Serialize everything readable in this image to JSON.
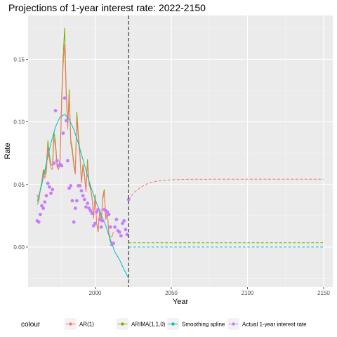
{
  "chart_data": {
    "type": "line",
    "title": "Projections of 1-year interest rate: 2022-2150",
    "xlabel": "Year",
    "ylabel": "Rate",
    "xlim": [
      1956,
      2156
    ],
    "ylim": [
      -0.032,
      0.185
    ],
    "x_ticks": [
      2000,
      2050,
      2100,
      2150
    ],
    "y_ticks": [
      0.0,
      0.05,
      0.1,
      0.15
    ],
    "y_tick_labels": [
      "0.00",
      "0.05",
      "0.10",
      "0.15"
    ],
    "grid": true,
    "cutoff_year": 2022,
    "legend": {
      "title": "colour",
      "position": "bottom",
      "entries": [
        {
          "label": "AR(1)",
          "color": "#F8766D"
        },
        {
          "label": "ARIMA(1,1,0)",
          "color": "#7CAE00"
        },
        {
          "label": "Smoothing spline",
          "color": "#00BFC4"
        },
        {
          "label": "Actual 1-year interest rate",
          "color": "#C77CFF"
        }
      ]
    },
    "series": [
      {
        "name": "Actual 1-year interest rate",
        "kind": "points",
        "color": "#C77CFF",
        "points": [
          [
            1962,
            0.021
          ],
          [
            1963,
            0.02
          ],
          [
            1964,
            0.026
          ],
          [
            1965,
            0.033
          ],
          [
            1966,
            0.031
          ],
          [
            1967,
            0.036
          ],
          [
            1968,
            0.041
          ],
          [
            1969,
            0.051
          ],
          [
            1970,
            0.048
          ],
          [
            1971,
            0.043
          ],
          [
            1972,
            0.046
          ],
          [
            1973,
            0.067
          ],
          [
            1974,
            0.109
          ],
          [
            1975,
            0.069
          ],
          [
            1976,
            0.065
          ],
          [
            1977,
            0.066
          ],
          [
            1978,
            0.065
          ],
          [
            1979,
            0.091
          ],
          [
            1980,
            0.119
          ],
          [
            1981,
            0.101
          ],
          [
            1982,
            0.069
          ],
          [
            1983,
            0.047
          ],
          [
            1984,
            0.049
          ],
          [
            1985,
            0.037
          ],
          [
            1986,
            0.02
          ],
          [
            1987,
            0.031
          ],
          [
            1988,
            0.037
          ],
          [
            1989,
            0.049
          ],
          [
            1990,
            0.049
          ],
          [
            1991,
            0.045
          ],
          [
            1992,
            0.041
          ],
          [
            1993,
            0.038
          ],
          [
            1994,
            0.032
          ],
          [
            1995,
            0.035
          ],
          [
            1996,
            0.031
          ],
          [
            1997,
            0.029
          ],
          [
            1998,
            0.027
          ],
          [
            1999,
            0.017
          ],
          [
            2000,
            0.019
          ],
          [
            2001,
            0.028
          ],
          [
            2002,
            0.03
          ],
          [
            2003,
            0.022
          ],
          [
            2004,
            0.016
          ],
          [
            2005,
            0.021
          ],
          [
            2006,
            0.03
          ],
          [
            2007,
            0.029
          ],
          [
            2008,
            0.028
          ],
          [
            2009,
            0.026
          ],
          [
            2010,
            0.016
          ],
          [
            2011,
            0.002
          ],
          [
            2012,
            0.003
          ],
          [
            2013,
            0.016
          ],
          [
            2014,
            0.022
          ],
          [
            2015,
            0.013
          ],
          [
            2016,
            0.012
          ],
          [
            2017,
            0.009
          ],
          [
            2018,
            0.019
          ],
          [
            2019,
            0.021
          ],
          [
            2020,
            0.014
          ],
          [
            2021,
            0.01
          ],
          [
            2022,
            0.038
          ]
        ]
      },
      {
        "name": "ARIMA(1,1,0)",
        "kind": "line",
        "color": "#7CAE00",
        "points": [
          [
            1962,
            0.034
          ],
          [
            1963,
            0.036
          ],
          [
            1964,
            0.046
          ],
          [
            1965,
            0.052
          ],
          [
            1966,
            0.062
          ],
          [
            1967,
            0.058
          ],
          [
            1968,
            0.064
          ],
          [
            1969,
            0.085
          ],
          [
            1970,
            0.074
          ],
          [
            1971,
            0.066
          ],
          [
            1972,
            0.065
          ],
          [
            1973,
            0.092
          ],
          [
            1974,
            0.084
          ],
          [
            1975,
            0.066
          ],
          [
            1976,
            0.064
          ],
          [
            1977,
            0.07
          ],
          [
            1978,
            0.118
          ],
          [
            1979,
            0.152
          ],
          [
            1980,
            0.175
          ],
          [
            1981,
            0.127
          ],
          [
            1982,
            0.097
          ],
          [
            1983,
            0.126
          ],
          [
            1984,
            0.086
          ],
          [
            1985,
            0.079
          ],
          [
            1986,
            0.067
          ],
          [
            1987,
            0.06
          ],
          [
            1988,
            0.108
          ],
          [
            1989,
            0.09
          ],
          [
            1990,
            0.076
          ],
          [
            1991,
            0.052
          ],
          [
            1992,
            0.066
          ],
          [
            1993,
            0.058
          ],
          [
            1994,
            0.045
          ],
          [
            1995,
            0.07
          ],
          [
            1996,
            0.052
          ],
          [
            1997,
            0.047
          ],
          [
            1998,
            0.04
          ],
          [
            1999,
            0.023
          ],
          [
            2000,
            0.042
          ],
          [
            2001,
            0.019
          ],
          [
            2002,
            0.012
          ],
          [
            2003,
            0.03
          ],
          [
            2004,
            0.02
          ],
          [
            2005,
            0.04
          ],
          [
            2006,
            0.046
          ],
          [
            2007,
            0.022
          ],
          [
            2008,
            0.029
          ],
          [
            2009,
            0.01
          ],
          [
            2010,
            0.004
          ],
          [
            2011,
            0.003
          ],
          [
            2012,
            0.003
          ]
        ]
      },
      {
        "name": "AR(1)",
        "kind": "line",
        "color": "#F8766D",
        "points": [
          [
            1962,
            0.042
          ],
          [
            1963,
            0.037
          ],
          [
            1964,
            0.045
          ],
          [
            1965,
            0.05
          ],
          [
            1966,
            0.06
          ],
          [
            1967,
            0.055
          ],
          [
            1968,
            0.06
          ],
          [
            1969,
            0.08
          ],
          [
            1970,
            0.07
          ],
          [
            1971,
            0.063
          ],
          [
            1972,
            0.062
          ],
          [
            1973,
            0.087
          ],
          [
            1974,
            0.08
          ],
          [
            1975,
            0.064
          ],
          [
            1976,
            0.062
          ],
          [
            1977,
            0.068
          ],
          [
            1978,
            0.112
          ],
          [
            1979,
            0.145
          ],
          [
            1980,
            0.162
          ],
          [
            1981,
            0.122
          ],
          [
            1982,
            0.094
          ],
          [
            1983,
            0.12
          ],
          [
            1984,
            0.083
          ],
          [
            1985,
            0.076
          ],
          [
            1986,
            0.065
          ],
          [
            1987,
            0.058
          ],
          [
            1988,
            0.103
          ],
          [
            1989,
            0.086
          ],
          [
            1990,
            0.073
          ],
          [
            1991,
            0.051
          ],
          [
            1992,
            0.064
          ],
          [
            1993,
            0.056
          ],
          [
            1994,
            0.044
          ],
          [
            1995,
            0.067
          ],
          [
            1996,
            0.05
          ],
          [
            1997,
            0.046
          ],
          [
            1998,
            0.039
          ],
          [
            1999,
            0.023
          ],
          [
            2000,
            0.04
          ],
          [
            2001,
            0.019
          ],
          [
            2002,
            0.013
          ],
          [
            2003,
            0.029
          ],
          [
            2004,
            0.02
          ],
          [
            2005,
            0.038
          ],
          [
            2006,
            0.044
          ],
          [
            2007,
            0.022
          ],
          [
            2008,
            0.028
          ],
          [
            2009,
            0.011
          ],
          [
            2010,
            0.008
          ],
          [
            2011,
            0.008
          ],
          [
            2012,
            0.012
          ]
        ]
      },
      {
        "name": "Smoothing spline",
        "kind": "line",
        "color": "#00BFC4",
        "points": [
          [
            1962,
            0.036
          ],
          [
            1965,
            0.05
          ],
          [
            1968,
            0.067
          ],
          [
            1971,
            0.083
          ],
          [
            1974,
            0.096
          ],
          [
            1977,
            0.104
          ],
          [
            1980,
            0.106
          ],
          [
            1983,
            0.102
          ],
          [
            1986,
            0.094
          ],
          [
            1989,
            0.083
          ],
          [
            1992,
            0.07
          ],
          [
            1995,
            0.057
          ],
          [
            1998,
            0.045
          ],
          [
            2001,
            0.035
          ],
          [
            2004,
            0.026
          ],
          [
            2007,
            0.017
          ],
          [
            2010,
            0.006
          ],
          [
            2013,
            -0.004
          ],
          [
            2016,
            -0.01
          ],
          [
            2019,
            -0.018
          ],
          [
            2022,
            -0.025
          ]
        ]
      },
      {
        "name": "AR(1)",
        "kind": "projection",
        "color": "#F8766D",
        "points": [
          [
            2022,
            0.038
          ],
          [
            2026,
            0.044
          ],
          [
            2030,
            0.048
          ],
          [
            2035,
            0.051
          ],
          [
            2040,
            0.0525
          ],
          [
            2045,
            0.0533
          ],
          [
            2050,
            0.0538
          ],
          [
            2060,
            0.0541
          ],
          [
            2080,
            0.0542
          ],
          [
            2100,
            0.0542
          ],
          [
            2150,
            0.0542
          ]
        ]
      },
      {
        "name": "ARIMA(1,1,0)",
        "kind": "projection",
        "color": "#7CAE00",
        "points": [
          [
            2022,
            0.0035
          ],
          [
            2150,
            0.0035
          ]
        ]
      },
      {
        "name": "Smoothing spline",
        "kind": "projection",
        "color": "#00BFC4",
        "points": [
          [
            2022,
            0.0
          ],
          [
            2150,
            0.0
          ]
        ]
      }
    ]
  }
}
